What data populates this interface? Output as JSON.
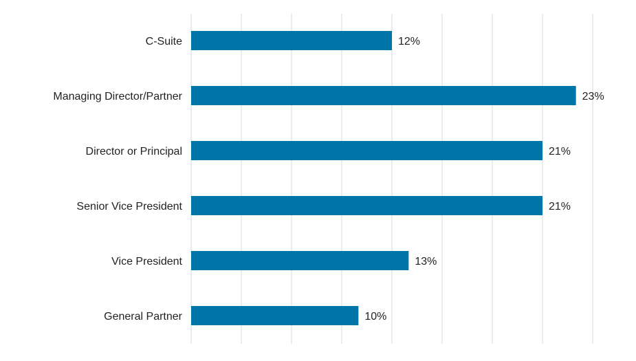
{
  "chart_data": {
    "type": "bar",
    "orientation": "horizontal",
    "title": "",
    "xlabel": "",
    "ylabel": "",
    "categories": [
      "C-Suite",
      "Managing Director/Partner",
      "Director or Principal",
      "Senior Vice President",
      "Vice President",
      "General Partner"
    ],
    "values": [
      12,
      23,
      21,
      21,
      13,
      10
    ],
    "labels": [
      "12%",
      "23%",
      "21%",
      "21%",
      "13%",
      "10%"
    ],
    "xlim": [
      0,
      24
    ],
    "grid": true,
    "bar_color": "#0076a8",
    "grid_color": "#e6e6e6"
  }
}
